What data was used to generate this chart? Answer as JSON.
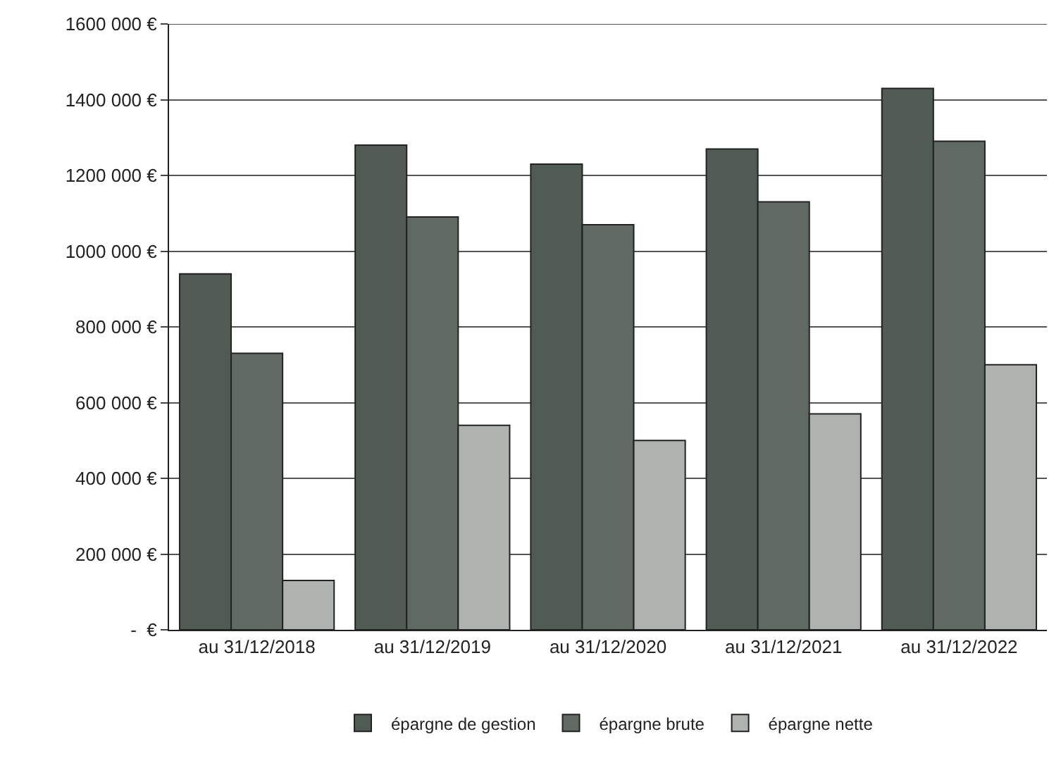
{
  "chart_data": {
    "type": "bar",
    "categories": [
      "au 31/12/2018",
      "au 31/12/2019",
      "au 31/12/2020",
      "au 31/12/2021",
      "au 31/12/2022"
    ],
    "series": [
      {
        "name": "épargne de gestion",
        "color": "#4f5b53",
        "values": [
          940000,
          1280000,
          1230000,
          1270000,
          1430000
        ]
      },
      {
        "name": "épargne brute",
        "color": "#5e6a62",
        "values": [
          730000,
          1090000,
          1070000,
          1130000,
          1290000
        ]
      },
      {
        "name": "épargne nette",
        "color": "#aeb3af",
        "values": [
          130000,
          540000,
          500000,
          570000,
          700000
        ]
      }
    ],
    "ylim": [
      0,
      1600000
    ],
    "yticks": [
      {
        "value": 0,
        "label": "-  €"
      },
      {
        "value": 200000,
        "label": "200 000 €"
      },
      {
        "value": 400000,
        "label": "400 000 €"
      },
      {
        "value": 600000,
        "label": "600 000 €"
      },
      {
        "value": 800000,
        "label": "800 000 €"
      },
      {
        "value": 1000000,
        "label": "1000 000 €"
      },
      {
        "value": 1200000,
        "label": "1200 000 €"
      },
      {
        "value": 1400000,
        "label": "1400 000 €"
      },
      {
        "value": 1600000,
        "label": "1600 000 €"
      }
    ],
    "grid": "y",
    "legend": "bottom"
  }
}
